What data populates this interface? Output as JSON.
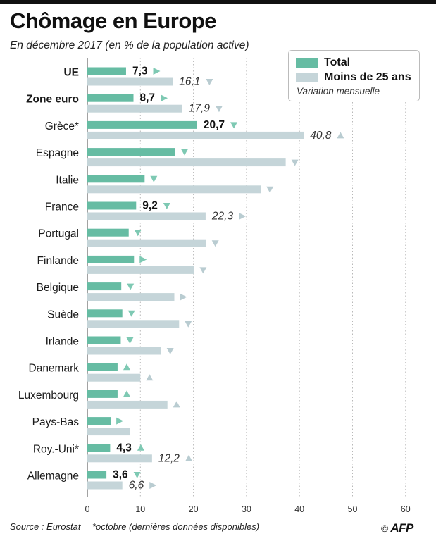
{
  "header": {
    "title": "Chômage en Europe",
    "subtitle": "En décembre 2017  (en % de la population active)"
  },
  "legend": {
    "total_label": "Total",
    "youth_label": "Moins de 25 ans",
    "note": "Variation mensuelle"
  },
  "footer": {
    "source": "Source : Eurostat",
    "footnote": "*octobre (dernières données disponibles)",
    "copyright": "©",
    "logo_text": "AFP"
  },
  "colors": {
    "total": "#66bca3",
    "youth": "#c5d5d9",
    "arrow_total": "#7ec9b3",
    "arrow_youth": "#b9ccd1"
  },
  "chart_data": {
    "type": "bar",
    "orientation": "horizontal",
    "xlim": [
      0,
      60
    ],
    "xticks": [
      0,
      10,
      20,
      30,
      40,
      50,
      60
    ],
    "grid": "vertical-dotted",
    "legend_position": "top-right",
    "categories": [
      "UE",
      "Zone euro",
      "Grèce*",
      "Espagne",
      "Italie",
      "France",
      "Portugal",
      "Finlande",
      "Belgique",
      "Suède",
      "Irlande",
      "Danemark",
      "Luxembourg",
      "Pays-Bas",
      "Roy.-Uni*",
      "Allemagne"
    ],
    "bold_categories": [
      "UE",
      "Zone euro"
    ],
    "series": [
      {
        "name": "Total",
        "values": [
          7.3,
          8.7,
          20.7,
          16.6,
          10.8,
          9.2,
          7.8,
          8.8,
          6.4,
          6.6,
          6.3,
          5.7,
          5.7,
          4.4,
          4.3,
          3.6
        ],
        "labels": [
          "7,3",
          "8,7",
          "20,7",
          "",
          "",
          "9,2",
          "",
          "",
          "",
          "",
          "",
          "",
          "",
          "",
          "4,3",
          "3,6"
        ],
        "monthly_variation": [
          "right",
          "right",
          "down",
          "down",
          "down",
          "down",
          "down",
          "right",
          "down",
          "down",
          "down",
          "up",
          "up",
          "right",
          "up",
          "down"
        ]
      },
      {
        "name": "Moins de 25 ans",
        "values": [
          16.1,
          17.9,
          40.8,
          37.4,
          32.7,
          22.3,
          22.4,
          20.1,
          16.4,
          17.3,
          13.9,
          10.0,
          15.1,
          8.1,
          12.2,
          6.6
        ],
        "labels": [
          "16,1",
          "17,9",
          "40,8",
          "",
          "",
          "22,3",
          "",
          "",
          "",
          "",
          "",
          "",
          "",
          "",
          "12,2",
          "6,6"
        ],
        "monthly_variation": [
          "down",
          "down",
          "up",
          "down",
          "down",
          "right",
          "down",
          "down",
          "right",
          "down",
          "down",
          "up",
          "up",
          "",
          "up",
          "right"
        ]
      }
    ]
  }
}
